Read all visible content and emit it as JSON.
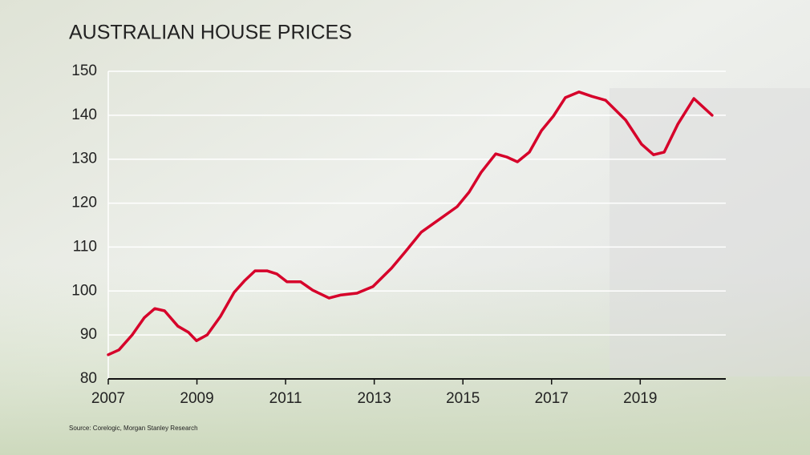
{
  "chart_data": {
    "type": "line",
    "title": "AUSTRALIAN HOUSE PRICES",
    "source": "Source: Corelogic, Morgan Stanley Research",
    "x": [
      2007.0,
      2007.24,
      2007.54,
      2007.81,
      2008.05,
      2008.27,
      2008.57,
      2008.81,
      2008.99,
      2009.23,
      2009.53,
      2009.84,
      2010.08,
      2010.31,
      2010.58,
      2010.8,
      2011.03,
      2011.34,
      2011.61,
      2011.98,
      2012.25,
      2012.61,
      2012.97,
      2013.39,
      2013.69,
      2014.06,
      2014.51,
      2014.87,
      2015.14,
      2015.41,
      2015.74,
      2015.99,
      2016.23,
      2016.5,
      2016.77,
      2017.04,
      2017.31,
      2017.62,
      2017.91,
      2018.22,
      2018.67,
      2019.03,
      2019.3,
      2019.54,
      2019.85,
      2020.21,
      2020.62
    ],
    "series": [
      {
        "name": "House prices",
        "color": "#d6002a",
        "values": [
          85.5,
          86.6,
          90.0,
          93.9,
          96.0,
          95.5,
          92.0,
          90.6,
          88.7,
          90.0,
          94.2,
          99.7,
          102.4,
          104.6,
          104.6,
          103.9,
          102.1,
          102.1,
          100.2,
          98.4,
          99.1,
          99.5,
          101.0,
          105.2,
          108.8,
          113.4,
          116.6,
          119.2,
          122.5,
          127.0,
          131.2,
          130.5,
          129.4,
          131.6,
          136.5,
          139.8,
          144.0,
          145.3,
          144.3,
          143.4,
          138.9,
          133.4,
          131.0,
          131.6,
          138.0,
          143.8,
          140.0
        ]
      }
    ],
    "xlim": [
      2007,
      2020.93
    ],
    "xticks": [
      2007,
      2009,
      2011,
      2013,
      2015,
      2017,
      2019
    ],
    "ylim": [
      80,
      150
    ],
    "yticks": [
      80,
      90,
      100,
      110,
      120,
      130,
      140,
      150
    ],
    "grid": true
  }
}
